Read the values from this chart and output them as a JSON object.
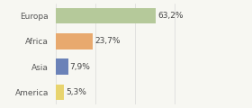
{
  "categories": [
    "Europa",
    "Africa",
    "Asia",
    "America"
  ],
  "values": [
    63.2,
    23.7,
    7.9,
    5.3
  ],
  "labels": [
    "63,2%",
    "23,7%",
    "7,9%",
    "5,3%"
  ],
  "colors": [
    "#b5c99a",
    "#e8a96e",
    "#6b82b8",
    "#e8d46e"
  ],
  "xlim": [
    0,
    100
  ],
  "bar_height": 0.62,
  "background_color": "#f7f7f2",
  "label_fontsize": 6.5,
  "tick_fontsize": 6.5,
  "grid_color": "#d8d8d8",
  "grid_positions": [
    0,
    25,
    50,
    75,
    100
  ]
}
